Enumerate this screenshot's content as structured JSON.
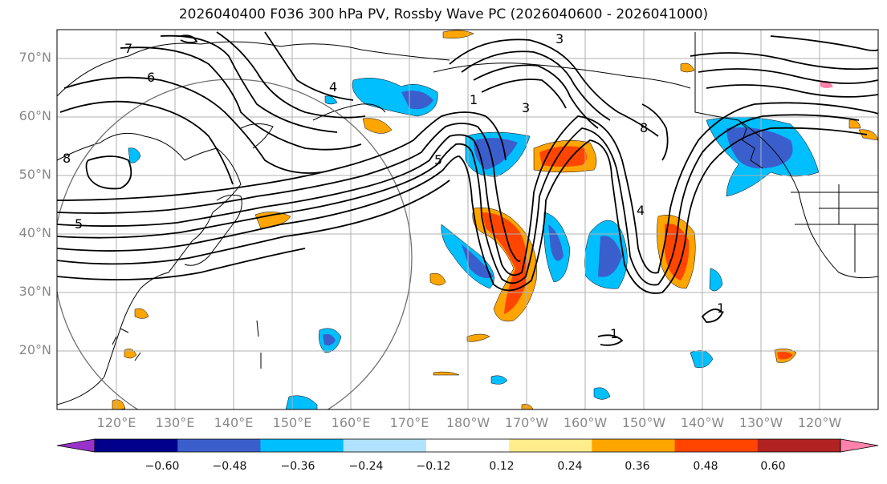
{
  "title": "2026040400 F036 300 hPa PV, Rossby Wave PC (2026040600 - 2026041000)",
  "lat_labels": [
    "70°N",
    "60°N",
    "50°N",
    "40°N",
    "30°N",
    "20°N"
  ],
  "lon_labels": [
    "120°E",
    "130°E",
    "140°E",
    "150°E",
    "160°E",
    "170°E",
    "180°W",
    "170°W",
    "160°W",
    "150°W",
    "140°W",
    "130°W",
    "120°W"
  ],
  "contour_labels": [
    "7",
    "6",
    "8",
    "5",
    "4",
    "3",
    "1",
    "5",
    "3",
    "8",
    "4",
    "1",
    "1"
  ],
  "colorbar": {
    "ticks": [
      "−0.60",
      "−0.48",
      "−0.36",
      "−0.24",
      "−0.12",
      "0.12",
      "0.24",
      "0.36",
      "0.48",
      "0.60"
    ],
    "colors": [
      "#9932cc",
      "#00008b",
      "#3a5fcd",
      "#00bfff",
      "#b0e2ff",
      "#ffffff",
      "#ffec8b",
      "#ffa500",
      "#ff4500",
      "#b22222",
      "#ff82ab"
    ]
  }
}
